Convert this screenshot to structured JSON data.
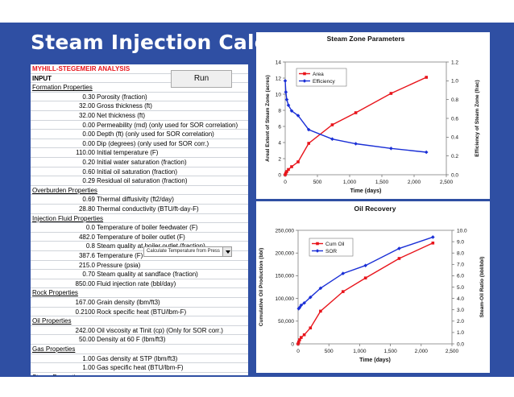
{
  "slide": {
    "title": "Steam Injection Calc"
  },
  "sheet": {
    "analysis_title": "MYHILL-STEGEMEIR ANALYSIS",
    "input_label": "INPUT",
    "run_button": "Run",
    "rows": [
      {
        "kind": "sec",
        "label": "Formation Properties"
      },
      {
        "kind": "data",
        "value": "0.30",
        "desc": "Porosity (fraction)"
      },
      {
        "kind": "data",
        "value": "32.00",
        "desc": "Gross thickness (ft)"
      },
      {
        "kind": "data",
        "value": "32.00",
        "desc": "Net thickness (ft)"
      },
      {
        "kind": "data",
        "value": "0.00",
        "desc": "Permeability (md) (only used for SOR correlation)"
      },
      {
        "kind": "data",
        "value": "0.00",
        "desc": "Depth (ft) (only used for SOR correlation)"
      },
      {
        "kind": "data",
        "value": "0.00",
        "desc": "Dip (degrees) (only used for SOR corr.)"
      },
      {
        "kind": "data",
        "value": "110.00",
        "desc": "Initial temperature (F)"
      },
      {
        "kind": "data",
        "value": "0.20",
        "desc": "Initial water saturation (fraction)"
      },
      {
        "kind": "data",
        "value": "0.60",
        "desc": "Initial oil saturation (fraction)"
      },
      {
        "kind": "data",
        "value": "0.29",
        "desc": "Residual oil saturation (fraction)"
      },
      {
        "kind": "sec",
        "label": "Overburden Properties"
      },
      {
        "kind": "data",
        "value": "0.69",
        "desc": "Thermal diffusivity (ft2/day)"
      },
      {
        "kind": "data",
        "value": "28.80",
        "desc": "Thermal conductivity (BTU/ft-day-F)"
      },
      {
        "kind": "sec",
        "label": "Injection Fluid Properties"
      },
      {
        "kind": "data",
        "value": "0.0",
        "desc": "Temperature of boiler feedwater (F)"
      },
      {
        "kind": "data",
        "value": "482.0",
        "desc": "Temperature of boiler outlet (F)"
      },
      {
        "kind": "data",
        "value": "0.8",
        "desc": "Steam quality at boiler outlet (fraction)"
      },
      {
        "kind": "data",
        "value": "387.6",
        "desc": "Temperature (F)"
      },
      {
        "kind": "data",
        "value": "215.0",
        "desc": "Pressure (psia)"
      },
      {
        "kind": "data",
        "value": "0.70",
        "desc": "Steam quality at sandface (fraction)"
      },
      {
        "kind": "data",
        "value": "850.00",
        "desc": "Fluid injection rate (bbl/day)"
      },
      {
        "kind": "sec",
        "label": "Rock Properties"
      },
      {
        "kind": "data",
        "value": "167.00",
        "desc": "Grain density (lbm/ft3)"
      },
      {
        "kind": "data",
        "value": "0.2100",
        "desc": "Rock specific heat (BTU/lbm-F)"
      },
      {
        "kind": "sec",
        "label": "Oil Properties"
      },
      {
        "kind": "data",
        "value": "242.00",
        "desc": "Oil viscosity at Tinit (cp) (Only for SOR corr.)"
      },
      {
        "kind": "data",
        "value": "50.00",
        "desc": "Density at 60 F (lbm/ft3)"
      },
      {
        "kind": "sec",
        "label": "Gas Properties"
      },
      {
        "kind": "data",
        "value": "1.00",
        "desc": "Gas density at STP (lbm/ft3)"
      },
      {
        "kind": "data",
        "value": "1.00",
        "desc": "Gas specific heat (BTU/lbm-F)"
      },
      {
        "kind": "sec",
        "label": "Steam Properties"
      }
    ],
    "dropdown": {
      "selected": "Calculate Temperature from Press"
    }
  },
  "colors": {
    "banner": "#2f4fa3",
    "series_red": "#e8141b",
    "series_blue": "#1a2fd6",
    "heading_red": "#e8141b"
  },
  "chart_data": [
    {
      "type": "line",
      "title": "Steam Zone Parameters",
      "xlabel": "Time (days)",
      "ylabel": "Areal Extent of Steam Zone (acres)",
      "y2label": "Efficiency of Steam Zone (frac)",
      "xlim": [
        0,
        2500
      ],
      "ylim": [
        0,
        14
      ],
      "y2lim": [
        0,
        1.2
      ],
      "xticks": [
        "0",
        "500",
        "1,000",
        "1,500",
        "2,000",
        "2,500"
      ],
      "yticks": [
        "0",
        "2",
        "4",
        "6",
        "8",
        "10",
        "12",
        "14"
      ],
      "y2ticks": [
        "0.0",
        "0.2",
        "0.4",
        "0.6",
        "0.8",
        "1.0",
        "1.2"
      ],
      "legend": "top-left",
      "series": [
        {
          "name": "Area",
          "axis": "left",
          "color": "#e8141b",
          "x": [
            0,
            10,
            25,
            50,
            100,
            200,
            365,
            730,
            1095,
            1642,
            2190
          ],
          "y": [
            0.0,
            0.2,
            0.4,
            0.65,
            1.0,
            1.6,
            3.9,
            6.2,
            7.7,
            10.1,
            12.1
          ]
        },
        {
          "name": "Efficiency",
          "axis": "right",
          "color": "#1a2fd6",
          "x": [
            0,
            10,
            25,
            50,
            100,
            200,
            365,
            730,
            1095,
            1642,
            2190
          ],
          "y": [
            1.0,
            0.88,
            0.8,
            0.74,
            0.68,
            0.63,
            0.48,
            0.38,
            0.33,
            0.28,
            0.24
          ]
        }
      ]
    },
    {
      "type": "line",
      "title": "Oil Recovery",
      "xlabel": "Time (days)",
      "ylabel": "Cumulative Oil Production (bbl)",
      "y2label": "Steam-Oil Ratio (bbl/bbl)",
      "xlim": [
        0,
        2500
      ],
      "ylim": [
        0,
        250000
      ],
      "y2lim": [
        0,
        10
      ],
      "xticks": [
        "0",
        "500",
        "1,000",
        "1,500",
        "2,000",
        "2,500"
      ],
      "yticks": [
        "0",
        "50,000",
        "100,000",
        "150,000",
        "200,000",
        "250,000"
      ],
      "y2ticks": [
        "0.0",
        "1.0",
        "2.0",
        "3.0",
        "4.0",
        "5.0",
        "6.0",
        "7.0",
        "8.0",
        "9.0",
        "10.0"
      ],
      "legend": "top-left",
      "series": [
        {
          "name": "Cum Oil",
          "axis": "left",
          "color": "#e8141b",
          "x": [
            0,
            10,
            25,
            50,
            100,
            200,
            365,
            730,
            1095,
            1642,
            2190
          ],
          "y": [
            0,
            4000,
            9000,
            14000,
            20000,
            35000,
            72000,
            115000,
            145000,
            188000,
            222000
          ]
        },
        {
          "name": "SOR",
          "axis": "right",
          "color": "#1a2fd6",
          "x": [
            10,
            25,
            50,
            100,
            200,
            365,
            730,
            1095,
            1642,
            2190
          ],
          "y": [
            3.1,
            3.2,
            3.4,
            3.6,
            4.1,
            4.9,
            6.2,
            6.9,
            8.4,
            9.4
          ]
        }
      ]
    }
  ]
}
